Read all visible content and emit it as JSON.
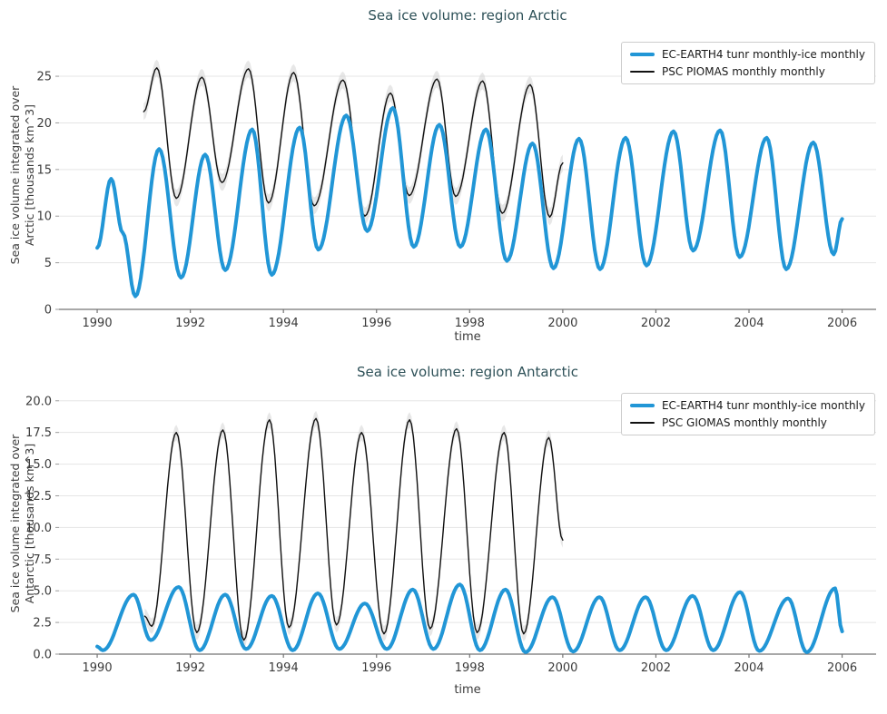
{
  "figure": {
    "background": "#ffffff",
    "title_color": "#2e5158",
    "accent_blue": "#2196d6",
    "grid_color": "#e5e5e5",
    "spine_color": "#737373",
    "tick_label_color": "#3b3b3b"
  },
  "chart_data": [
    {
      "type": "line",
      "title": "Sea ice volume: region Arctic",
      "xlabel": "time",
      "ylabel": "Sea ice volume integrated over\nArctic [thousands km^3]",
      "legend_position": "upper right",
      "grid": "horizontal",
      "xlim": [
        1989.18,
        2006.73
      ],
      "ylim": [
        0,
        28.8
      ],
      "x_tick_values": [
        1990,
        1992,
        1994,
        1996,
        1998,
        2000,
        2002,
        2004,
        2006
      ],
      "x_tick_labels": [
        "1990",
        "1992",
        "1994",
        "1996",
        "1998",
        "2000",
        "2002",
        "2004",
        "2006"
      ],
      "y_tick_values": [
        0,
        5,
        10,
        15,
        20,
        25
      ],
      "y_tick_labels": [
        "0",
        "5",
        "10",
        "15",
        "20",
        "25"
      ],
      "series": [
        {
          "name": "EC-EARTH4 tunr monthly-ice monthly",
          "color": "#2196d6",
          "line_width": 4,
          "points": [
            [
              1990.0,
              6.6
            ],
            [
              1990.3,
              14.0
            ],
            [
              1990.55,
              8.2
            ],
            [
              1990.82,
              1.4
            ],
            [
              1991.33,
              17.2
            ],
            [
              1991.8,
              3.4
            ],
            [
              1992.32,
              16.6
            ],
            [
              1992.75,
              4.2
            ],
            [
              1993.33,
              19.3
            ],
            [
              1993.75,
              3.7
            ],
            [
              1994.35,
              19.5
            ],
            [
              1994.75,
              6.4
            ],
            [
              1995.35,
              20.8
            ],
            [
              1995.8,
              8.4
            ],
            [
              1996.35,
              21.6
            ],
            [
              1996.8,
              6.7
            ],
            [
              1997.35,
              19.8
            ],
            [
              1997.8,
              6.7
            ],
            [
              1998.35,
              19.3
            ],
            [
              1998.8,
              5.2
            ],
            [
              1999.35,
              17.8
            ],
            [
              1999.8,
              4.4
            ],
            [
              2000.35,
              18.3
            ],
            [
              2000.8,
              4.3
            ],
            [
              2001.35,
              18.4
            ],
            [
              2001.8,
              4.7
            ],
            [
              2002.38,
              19.1
            ],
            [
              2002.8,
              6.3
            ],
            [
              2003.38,
              19.2
            ],
            [
              2003.8,
              5.6
            ],
            [
              2004.38,
              18.4
            ],
            [
              2004.8,
              4.3
            ],
            [
              2005.38,
              17.9
            ],
            [
              2005.82,
              5.9
            ],
            [
              2006.0,
              9.7
            ]
          ]
        },
        {
          "name": "PSC PIOMAS monthly monthly",
          "color": "#111111",
          "line_width": 1.4,
          "band": 0.9,
          "band_color": "#d4d4d4",
          "points": [
            [
              1991.0,
              21.2
            ],
            [
              1991.28,
              25.9
            ],
            [
              1991.7,
              11.9
            ],
            [
              1992.25,
              24.9
            ],
            [
              1992.68,
              13.6
            ],
            [
              1993.25,
              25.8
            ],
            [
              1993.68,
              11.4
            ],
            [
              1994.22,
              25.4
            ],
            [
              1994.66,
              11.1
            ],
            [
              1995.28,
              24.6
            ],
            [
              1995.75,
              10.0
            ],
            [
              1996.3,
              23.2
            ],
            [
              1996.7,
              12.2
            ],
            [
              1997.3,
              24.7
            ],
            [
              1997.7,
              12.1
            ],
            [
              1998.28,
              24.5
            ],
            [
              1998.7,
              10.3
            ],
            [
              1999.3,
              24.1
            ],
            [
              1999.72,
              9.9
            ],
            [
              2000.0,
              15.7
            ]
          ]
        }
      ]
    },
    {
      "type": "line",
      "title": "Sea ice volume: region Antarctic",
      "xlabel": "time",
      "ylabel": "Sea ice volume integrated over\nAntarctic [thousands km^3]",
      "legend_position": "upper right",
      "grid": "horizontal",
      "xlim": [
        1989.18,
        2006.73
      ],
      "ylim": [
        0,
        20.7
      ],
      "x_tick_values": [
        1990,
        1992,
        1994,
        1996,
        1998,
        2000,
        2002,
        2004,
        2006
      ],
      "x_tick_labels": [
        "1990",
        "1992",
        "1994",
        "1996",
        "1998",
        "2000",
        "2002",
        "2004",
        "2006"
      ],
      "y_tick_values": [
        0,
        2.5,
        5,
        7.5,
        10,
        12.5,
        15,
        17.5,
        20
      ],
      "y_tick_labels": [
        "0.0",
        "2.5",
        "5.0",
        "7.5",
        "10.0",
        "12.5",
        "15.0",
        "17.5",
        "20.0"
      ],
      "series": [
        {
          "name": "EC-EARTH4 tunr monthly-ice monthly",
          "color": "#2196d6",
          "line_width": 4,
          "points": [
            [
              1990.0,
              0.6
            ],
            [
              1990.12,
              0.3
            ],
            [
              1990.78,
              4.7
            ],
            [
              1991.15,
              1.1
            ],
            [
              1991.75,
              5.3
            ],
            [
              1992.2,
              0.3
            ],
            [
              1992.75,
              4.7
            ],
            [
              1993.2,
              0.4
            ],
            [
              1993.75,
              4.6
            ],
            [
              1994.2,
              0.3
            ],
            [
              1994.74,
              4.8
            ],
            [
              1995.2,
              0.4
            ],
            [
              1995.75,
              4.0
            ],
            [
              1996.22,
              0.4
            ],
            [
              1996.78,
              5.1
            ],
            [
              1997.22,
              0.4
            ],
            [
              1997.79,
              5.5
            ],
            [
              1998.22,
              0.3
            ],
            [
              1998.77,
              5.1
            ],
            [
              1999.2,
              0.15
            ],
            [
              1999.78,
              4.5
            ],
            [
              2000.22,
              0.2
            ],
            [
              2000.79,
              4.5
            ],
            [
              2001.22,
              0.3
            ],
            [
              2001.78,
              4.5
            ],
            [
              2002.22,
              0.3
            ],
            [
              2002.79,
              4.6
            ],
            [
              2003.23,
              0.3
            ],
            [
              2003.81,
              4.9
            ],
            [
              2004.22,
              0.25
            ],
            [
              2004.84,
              4.4
            ],
            [
              2005.24,
              0.15
            ],
            [
              2005.85,
              5.2
            ],
            [
              2006.0,
              1.8
            ]
          ]
        },
        {
          "name": "PSC GIOMAS monthly monthly",
          "color": "#111111",
          "line_width": 1.4,
          "band": 0.6,
          "band_color": "#d4d4d4",
          "points": [
            [
              1991.02,
              3.0
            ],
            [
              1991.17,
              2.2
            ],
            [
              1991.7,
              17.5
            ],
            [
              1992.14,
              1.7
            ],
            [
              1992.7,
              17.7
            ],
            [
              1993.15,
              1.1
            ],
            [
              1993.7,
              18.5
            ],
            [
              1994.12,
              2.1
            ],
            [
              1994.7,
              18.6
            ],
            [
              1995.14,
              2.3
            ],
            [
              1995.68,
              17.5
            ],
            [
              1996.16,
              1.6
            ],
            [
              1996.71,
              18.5
            ],
            [
              1997.15,
              2.0
            ],
            [
              1997.72,
              17.8
            ],
            [
              1998.16,
              1.7
            ],
            [
              1998.74,
              17.5
            ],
            [
              1999.16,
              1.6
            ],
            [
              1999.7,
              17.1
            ],
            [
              2000.0,
              9.0
            ]
          ]
        }
      ]
    }
  ]
}
